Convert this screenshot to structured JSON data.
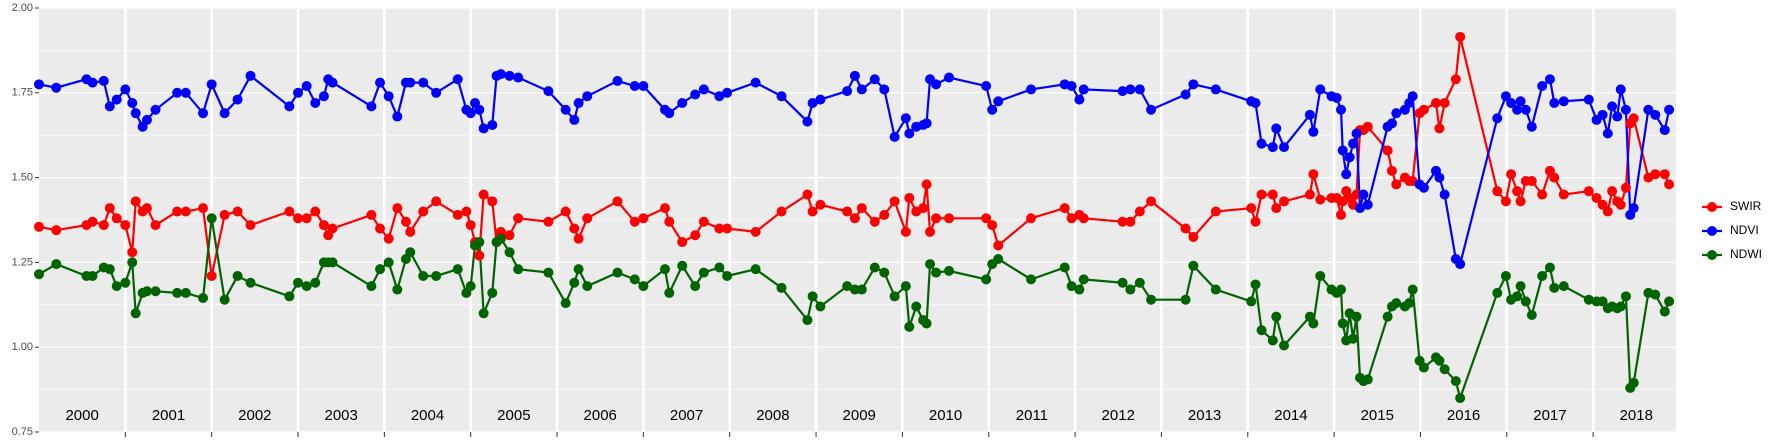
{
  "chart_data": {
    "type": "line",
    "xlim": [
      2000,
      2018.96
    ],
    "xticks": [
      2001,
      2002,
      2003,
      2004,
      2005,
      2006,
      2007,
      2008,
      2009,
      2010,
      2011,
      2012,
      2013,
      2014,
      2015,
      2016,
      2017,
      2018
    ],
    "year_labels": [
      "2000",
      "2001",
      "2002",
      "2003",
      "2004",
      "2005",
      "2006",
      "2007",
      "2008",
      "2009",
      "2010",
      "2011",
      "2012",
      "2013",
      "2014",
      "2015",
      "2016",
      "2017",
      "2018"
    ],
    "ylim": [
      0.75,
      2.0
    ],
    "yticks": [
      0.75,
      {
        "value": 1,
        "label": "1.00"
      },
      1.25,
      {
        "value": 1.5,
        "label": "1.50"
      },
      1.75,
      {
        "value": 2,
        "label": "2.00"
      }
    ],
    "grid": true,
    "legend": "right",
    "x": [
      2000.0,
      2000.2,
      2000.55,
      2000.62,
      2000.75,
      2000.82,
      2000.9,
      2001.0,
      2001.08,
      2001.12,
      2001.2,
      2001.25,
      2001.35,
      2001.6,
      2001.7,
      2001.9,
      2002.0,
      2002.15,
      2002.3,
      2002.45,
      2002.9,
      2003.0,
      2003.1,
      2003.2,
      2003.3,
      2003.35,
      2003.4,
      2003.85,
      2003.95,
      2004.05,
      2004.15,
      2004.25,
      2004.3,
      2004.45,
      2004.6,
      2004.85,
      2004.95,
      2005.0,
      2005.05,
      2005.1,
      2005.15,
      2005.25,
      2005.3,
      2005.35,
      2005.45,
      2005.55,
      2005.9,
      2006.1,
      2006.2,
      2006.25,
      2006.35,
      2006.7,
      2006.9,
      2007.0,
      2007.25,
      2007.3,
      2007.45,
      2007.6,
      2007.7,
      2007.88,
      2007.97,
      2008.3,
      2008.6,
      2008.9,
      2008.96,
      2009.05,
      2009.36,
      2009.45,
      2009.53,
      2009.68,
      2009.79,
      2009.91,
      2010.04,
      2010.08,
      2010.16,
      2010.24,
      2010.28,
      2010.32,
      2010.39,
      2010.54,
      2010.97,
      2011.04,
      2011.11,
      2011.49,
      2011.88,
      2011.96,
      2012.05,
      2012.1,
      2012.55,
      2012.64,
      2012.75,
      2012.88,
      2013.28,
      2013.37,
      2013.63,
      2014.04,
      2014.09,
      2014.16,
      2014.29,
      2014.33,
      2014.42,
      2014.72,
      2014.76,
      2014.84,
      2014.97,
      2015.03,
      2015.08,
      2015.1,
      2015.14,
      2015.18,
      2015.22,
      2015.26,
      2015.3,
      2015.34,
      2015.39,
      2015.62,
      2015.67,
      2015.72,
      2015.82,
      2015.87,
      2015.91,
      2015.99,
      2016.04,
      2016.18,
      2016.22,
      2016.28,
      2016.41,
      2016.46,
      2016.89,
      2016.99,
      2017.05,
      2017.12,
      2017.16,
      2017.22,
      2017.29,
      2017.41,
      2017.5,
      2017.55,
      2017.66,
      2017.95,
      2018.04,
      2018.11,
      2018.17,
      2018.22,
      2018.28,
      2018.32,
      2018.38,
      2018.43,
      2018.47,
      2018.64,
      2018.72,
      2018.83,
      2018.88
    ],
    "series": [
      {
        "name": "SWIR",
        "color": "#ff0000",
        "values": [
          1.355,
          1.345,
          1.36,
          1.37,
          1.36,
          1.41,
          1.38,
          1.36,
          1.28,
          1.43,
          1.4,
          1.41,
          1.36,
          1.4,
          1.4,
          1.41,
          1.21,
          1.39,
          1.4,
          1.36,
          1.4,
          1.38,
          1.38,
          1.4,
          1.36,
          1.33,
          1.35,
          1.39,
          1.35,
          1.32,
          1.41,
          1.37,
          1.34,
          1.4,
          1.43,
          1.39,
          1.4,
          1.36,
          1.31,
          1.27,
          1.45,
          1.43,
          1.31,
          1.34,
          1.33,
          1.38,
          1.37,
          1.4,
          1.35,
          1.32,
          1.38,
          1.43,
          1.37,
          1.38,
          1.41,
          1.37,
          1.31,
          1.33,
          1.37,
          1.35,
          1.35,
          1.34,
          1.4,
          1.45,
          1.4,
          1.42,
          1.4,
          1.38,
          1.41,
          1.37,
          1.39,
          1.43,
          1.34,
          1.44,
          1.4,
          1.41,
          1.48,
          1.34,
          1.38,
          1.38,
          1.38,
          1.36,
          1.3,
          1.38,
          1.41,
          1.38,
          1.39,
          1.38,
          1.37,
          1.37,
          1.4,
          1.43,
          1.35,
          1.325,
          1.4,
          1.41,
          1.37,
          1.45,
          1.45,
          1.41,
          1.43,
          1.45,
          1.51,
          1.435,
          1.44,
          1.44,
          1.39,
          1.43,
          1.46,
          1.44,
          1.42,
          1.45,
          1.64,
          1.64,
          1.65,
          1.58,
          1.52,
          1.48,
          1.5,
          1.49,
          1.49,
          1.69,
          1.7,
          1.72,
          1.645,
          1.72,
          1.79,
          1.915,
          1.46,
          1.43,
          1.51,
          1.46,
          1.43,
          1.49,
          1.49,
          1.45,
          1.52,
          1.5,
          1.45,
          1.46,
          1.44,
          1.42,
          1.4,
          1.46,
          1.43,
          1.42,
          1.47,
          1.66,
          1.675,
          1.5,
          1.51,
          1.51,
          1.48
        ]
      },
      {
        "name": "NDVI",
        "color": "#0000ff",
        "values": [
          1.775,
          1.765,
          1.79,
          1.78,
          1.785,
          1.71,
          1.73,
          1.76,
          1.72,
          1.69,
          1.65,
          1.67,
          1.7,
          1.75,
          1.75,
          1.69,
          1.775,
          1.69,
          1.73,
          1.8,
          1.71,
          1.75,
          1.77,
          1.72,
          1.74,
          1.79,
          1.78,
          1.71,
          1.78,
          1.74,
          1.68,
          1.78,
          1.78,
          1.78,
          1.75,
          1.79,
          1.7,
          1.69,
          1.72,
          1.7,
          1.645,
          1.655,
          1.8,
          1.805,
          1.8,
          1.795,
          1.755,
          1.7,
          1.67,
          1.72,
          1.74,
          1.785,
          1.77,
          1.77,
          1.7,
          1.69,
          1.72,
          1.745,
          1.76,
          1.74,
          1.75,
          1.78,
          1.74,
          1.665,
          1.72,
          1.73,
          1.755,
          1.8,
          1.76,
          1.79,
          1.76,
          1.62,
          1.675,
          1.63,
          1.65,
          1.655,
          1.66,
          1.79,
          1.775,
          1.795,
          1.77,
          1.7,
          1.725,
          1.76,
          1.775,
          1.77,
          1.73,
          1.76,
          1.755,
          1.76,
          1.76,
          1.7,
          1.745,
          1.775,
          1.76,
          1.725,
          1.72,
          1.6,
          1.59,
          1.645,
          1.59,
          1.685,
          1.635,
          1.76,
          1.74,
          1.735,
          1.7,
          1.58,
          1.51,
          1.56,
          1.6,
          1.63,
          1.41,
          1.45,
          1.42,
          1.65,
          1.66,
          1.69,
          1.7,
          1.72,
          1.74,
          1.48,
          1.47,
          1.52,
          1.5,
          1.45,
          1.26,
          1.245,
          1.675,
          1.74,
          1.72,
          1.7,
          1.725,
          1.7,
          1.65,
          1.77,
          1.79,
          1.72,
          1.725,
          1.73,
          1.67,
          1.685,
          1.63,
          1.71,
          1.68,
          1.76,
          1.7,
          1.39,
          1.41,
          1.7,
          1.685,
          1.64,
          1.7
        ]
      },
      {
        "name": "NDWI",
        "color": "#006400",
        "values": [
          1.215,
          1.245,
          1.21,
          1.21,
          1.235,
          1.23,
          1.18,
          1.19,
          1.25,
          1.1,
          1.16,
          1.165,
          1.165,
          1.16,
          1.16,
          1.145,
          1.38,
          1.14,
          1.21,
          1.19,
          1.15,
          1.19,
          1.18,
          1.19,
          1.25,
          1.25,
          1.25,
          1.18,
          1.23,
          1.25,
          1.17,
          1.26,
          1.28,
          1.21,
          1.21,
          1.23,
          1.16,
          1.18,
          1.3,
          1.31,
          1.1,
          1.16,
          1.31,
          1.32,
          1.28,
          1.23,
          1.22,
          1.13,
          1.19,
          1.23,
          1.18,
          1.22,
          1.2,
          1.18,
          1.23,
          1.16,
          1.24,
          1.18,
          1.22,
          1.235,
          1.21,
          1.23,
          1.175,
          1.08,
          1.15,
          1.12,
          1.18,
          1.17,
          1.17,
          1.235,
          1.22,
          1.15,
          1.18,
          1.06,
          1.12,
          1.08,
          1.07,
          1.245,
          1.22,
          1.225,
          1.2,
          1.245,
          1.26,
          1.2,
          1.235,
          1.18,
          1.17,
          1.2,
          1.19,
          1.17,
          1.19,
          1.14,
          1.14,
          1.24,
          1.17,
          1.135,
          1.185,
          1.05,
          1.02,
          1.09,
          1.005,
          1.09,
          1.07,
          1.21,
          1.17,
          1.16,
          1.17,
          1.07,
          1.02,
          1.1,
          1.025,
          1.09,
          0.91,
          0.9,
          0.905,
          1.09,
          1.12,
          1.13,
          1.12,
          1.13,
          1.17,
          0.96,
          0.94,
          0.97,
          0.96,
          0.935,
          0.9,
          0.85,
          1.16,
          1.21,
          1.14,
          1.15,
          1.18,
          1.135,
          1.095,
          1.21,
          1.235,
          1.175,
          1.18,
          1.14,
          1.135,
          1.135,
          1.115,
          1.12,
          1.115,
          1.12,
          1.15,
          0.88,
          0.895,
          1.16,
          1.155,
          1.105,
          1.135
        ]
      }
    ]
  }
}
